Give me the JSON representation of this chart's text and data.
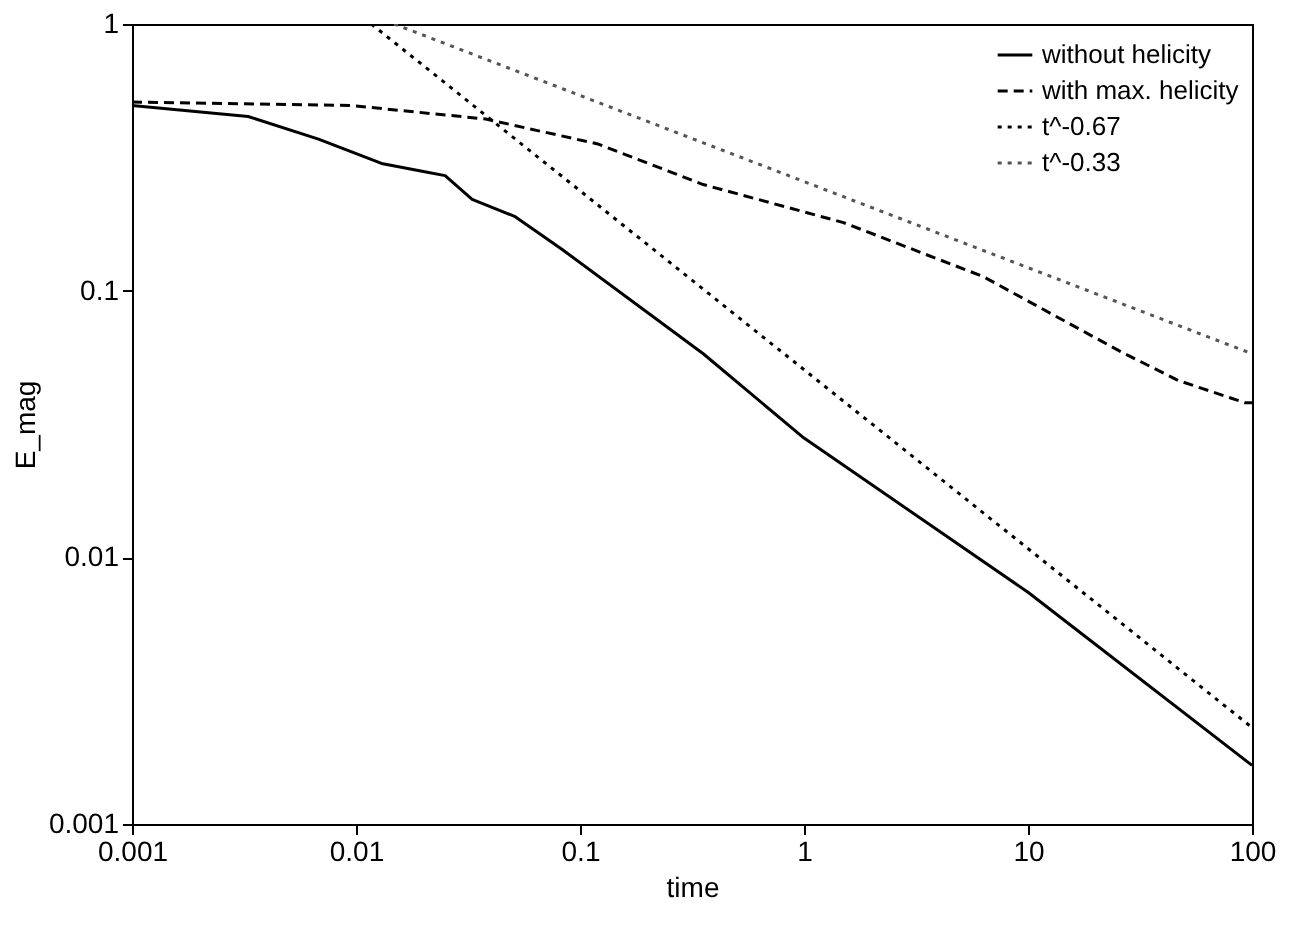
{
  "chart_data": {
    "type": "line",
    "xlabel": "time",
    "ylabel": "E_mag",
    "log": "xy",
    "grid": false,
    "legend": "top right",
    "xlim": [
      0.001,
      100
    ],
    "xticks": [
      0.001,
      0.01,
      0.1,
      1,
      10,
      100
    ],
    "ylim": [
      0.001,
      1
    ],
    "yticks": [
      0.001,
      0.01,
      0.1,
      1
    ],
    "series": [
      {
        "name": "without helicity",
        "color": "#000000",
        "line_style": "solid",
        "x": [
          0.001,
          0.0033,
          0.0068,
          0.013,
          0.02,
          0.025,
          0.033,
          0.051,
          0.083,
          0.355,
          1,
          10,
          100
        ],
        "values": [
          0.495,
          0.45,
          0.37,
          0.3,
          0.28,
          0.27,
          0.22,
          0.19,
          0.143,
          0.058,
          0.028,
          0.0074,
          0.00166
        ]
      },
      {
        "name": "with max. helicity",
        "color": "#000000",
        "line_style": "dashed",
        "x": [
          0.001,
          0.0095,
          0.038,
          0.12,
          0.355,
          1.5,
          6.3,
          26,
          47,
          93,
          100
        ],
        "values": [
          0.51,
          0.495,
          0.44,
          0.355,
          0.25,
          0.18,
          0.113,
          0.059,
          0.046,
          0.038,
          0.038
        ]
      },
      {
        "name": "t^-0.67",
        "color": "#000000",
        "line_style": "dotted",
        "x": [
          0.0117,
          100
        ],
        "values": [
          1,
          0.0023
        ]
      },
      {
        "name": "t^-0.33",
        "color": "#555555",
        "line_style": "dotted",
        "x": [
          0.0148,
          100
        ],
        "values": [
          1,
          0.058
        ]
      }
    ]
  }
}
